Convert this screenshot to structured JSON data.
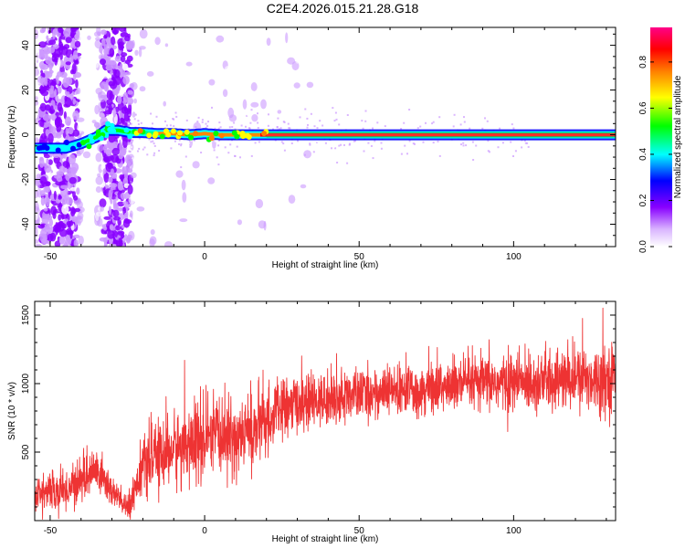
{
  "chart_data": [
    {
      "type": "heatmap",
      "title": "C2E4.2026.015.21.28.G18",
      "xlabel": "Height of straight line (km)",
      "ylabel": "Frequency (Hz)",
      "xlim": [
        -55,
        133
      ],
      "ylim": [
        -50,
        48
      ],
      "xticks": [
        -50,
        0,
        50,
        100
      ],
      "yticks": [
        -40,
        -20,
        0,
        20,
        40
      ],
      "colorbar": {
        "label": "Normalized spectral amplitude",
        "range": [
          0,
          0.95
        ],
        "ticks": [
          "0.0",
          "0.2",
          "0.4",
          "0.6",
          "0.8"
        ],
        "colormap": [
          "#ffffff",
          "#cc99ff",
          "#8800ff",
          "#0000ff",
          "#00ffff",
          "#00ff00",
          "#ffff00",
          "#ff7f00",
          "#ff0000",
          "#ff0088"
        ]
      },
      "ridge": {
        "description_points_x": [
          -55,
          -45,
          -40,
          -35,
          -32,
          -28,
          -24,
          -20,
          -15,
          -10,
          -5,
          0,
          5,
          10,
          15,
          20,
          30,
          60,
          100,
          133
        ],
        "description_points_y": [
          -6,
          -6,
          -4,
          -1,
          2,
          2,
          1,
          1,
          0.5,
          0.5,
          0,
          0.5,
          0,
          0,
          0,
          0,
          0,
          0,
          0,
          0
        ]
      }
    },
    {
      "type": "line",
      "xlabel": "Height of straight line (km)",
      "ylabel": "SNR (10 * v/v)",
      "xlim": [
        -55,
        133
      ],
      "ylim": [
        0,
        1600
      ],
      "xticks": [
        -50,
        0,
        50,
        100
      ],
      "yticks": [
        500,
        1000,
        1500
      ],
      "series_color": "#ee3333",
      "trend": {
        "x": [
          -55,
          -45,
          -40,
          -35,
          -30,
          -25,
          -20,
          -15,
          -10,
          -5,
          0,
          5,
          10,
          15,
          20,
          25,
          30,
          40,
          50,
          60,
          70,
          80,
          90,
          100,
          110,
          120,
          133
        ],
        "y": [
          200,
          220,
          300,
          370,
          220,
          80,
          400,
          470,
          520,
          570,
          550,
          620,
          600,
          650,
          720,
          820,
          850,
          880,
          920,
          940,
          960,
          980,
          1000,
          1010,
          1020,
          1030,
          1050
        ]
      },
      "noise_amplitude": [
        120,
        130,
        150,
        150,
        120,
        80,
        180,
        220,
        240,
        260,
        280,
        260,
        240,
        260,
        220,
        200,
        180,
        170,
        170,
        160,
        170,
        180,
        180,
        200,
        200,
        210,
        220
      ]
    }
  ]
}
